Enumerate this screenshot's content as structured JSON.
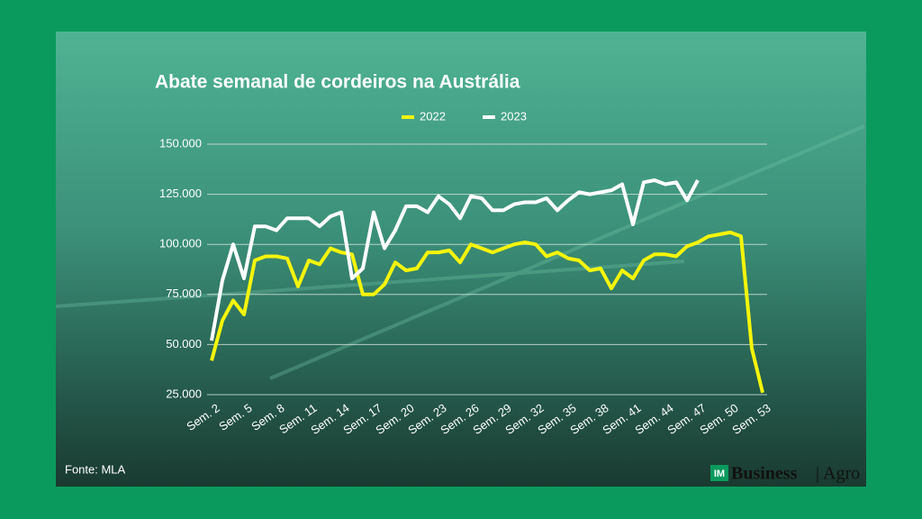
{
  "chart_data": {
    "type": "line",
    "title": "Abate semanal de cordeiros na Austrália",
    "source": "Fonte: MLA",
    "brand": {
      "badge": "IM",
      "name": "Business",
      "section": "Agro"
    },
    "categories": [
      "Sem. 2",
      null,
      null,
      "Sem. 5",
      null,
      null,
      "Sem. 8",
      null,
      null,
      "Sem. 11",
      null,
      null,
      "Sem. 14",
      null,
      null,
      "Sem. 17",
      null,
      null,
      "Sem. 20",
      null,
      null,
      "Sem. 23",
      null,
      null,
      "Sem. 26",
      null,
      null,
      "Sem. 29",
      null,
      null,
      "Sem. 32",
      null,
      null,
      "Sem. 35",
      null,
      null,
      "Sem. 38",
      null,
      null,
      "Sem. 41",
      null,
      null,
      "Sem. 44",
      null,
      null,
      "Sem. 47",
      null,
      null,
      "Sem. 50",
      null,
      null,
      "Sem. 53"
    ],
    "series": [
      {
        "name": "2022",
        "color": "#f5f50a",
        "values": [
          42000,
          62000,
          72000,
          65000,
          92000,
          94000,
          94000,
          93000,
          79000,
          92000,
          90000,
          98000,
          96000,
          95000,
          75000,
          75000,
          80000,
          91000,
          87000,
          88000,
          96000,
          96000,
          97000,
          91000,
          100000,
          98000,
          96000,
          98000,
          100000,
          101000,
          100000,
          94000,
          96000,
          93000,
          92000,
          87000,
          88000,
          78000,
          87000,
          83000,
          92000,
          95000,
          95000,
          94000,
          99000,
          101000,
          104000,
          105000,
          106000,
          104000,
          48000,
          26000
        ]
      },
      {
        "name": "2023",
        "color": "#ffffff",
        "values": [
          52000,
          82000,
          100000,
          83000,
          109000,
          109000,
          107000,
          113000,
          113000,
          113000,
          109000,
          114000,
          116000,
          83000,
          88000,
          116000,
          98000,
          107000,
          119000,
          119000,
          116000,
          124000,
          120000,
          113000,
          124000,
          123000,
          117000,
          117000,
          120000,
          121000,
          121000,
          123000,
          117000,
          122000,
          126000,
          125000,
          126000,
          127000,
          130000,
          110000,
          131000,
          132000,
          130000,
          131000,
          122000,
          132000,
          null,
          null,
          null,
          null,
          null,
          null
        ]
      }
    ],
    "ylim": [
      25000,
      150000
    ],
    "yticks": [
      {
        "value": 25000,
        "label": "25.000"
      },
      {
        "value": 50000,
        "label": "50.000"
      },
      {
        "value": 75000,
        "label": "75.000"
      },
      {
        "value": 100000,
        "label": "100.000"
      },
      {
        "value": 125000,
        "label": "125.000"
      },
      {
        "value": 150000,
        "label": "150.000"
      }
    ],
    "grid": true
  }
}
